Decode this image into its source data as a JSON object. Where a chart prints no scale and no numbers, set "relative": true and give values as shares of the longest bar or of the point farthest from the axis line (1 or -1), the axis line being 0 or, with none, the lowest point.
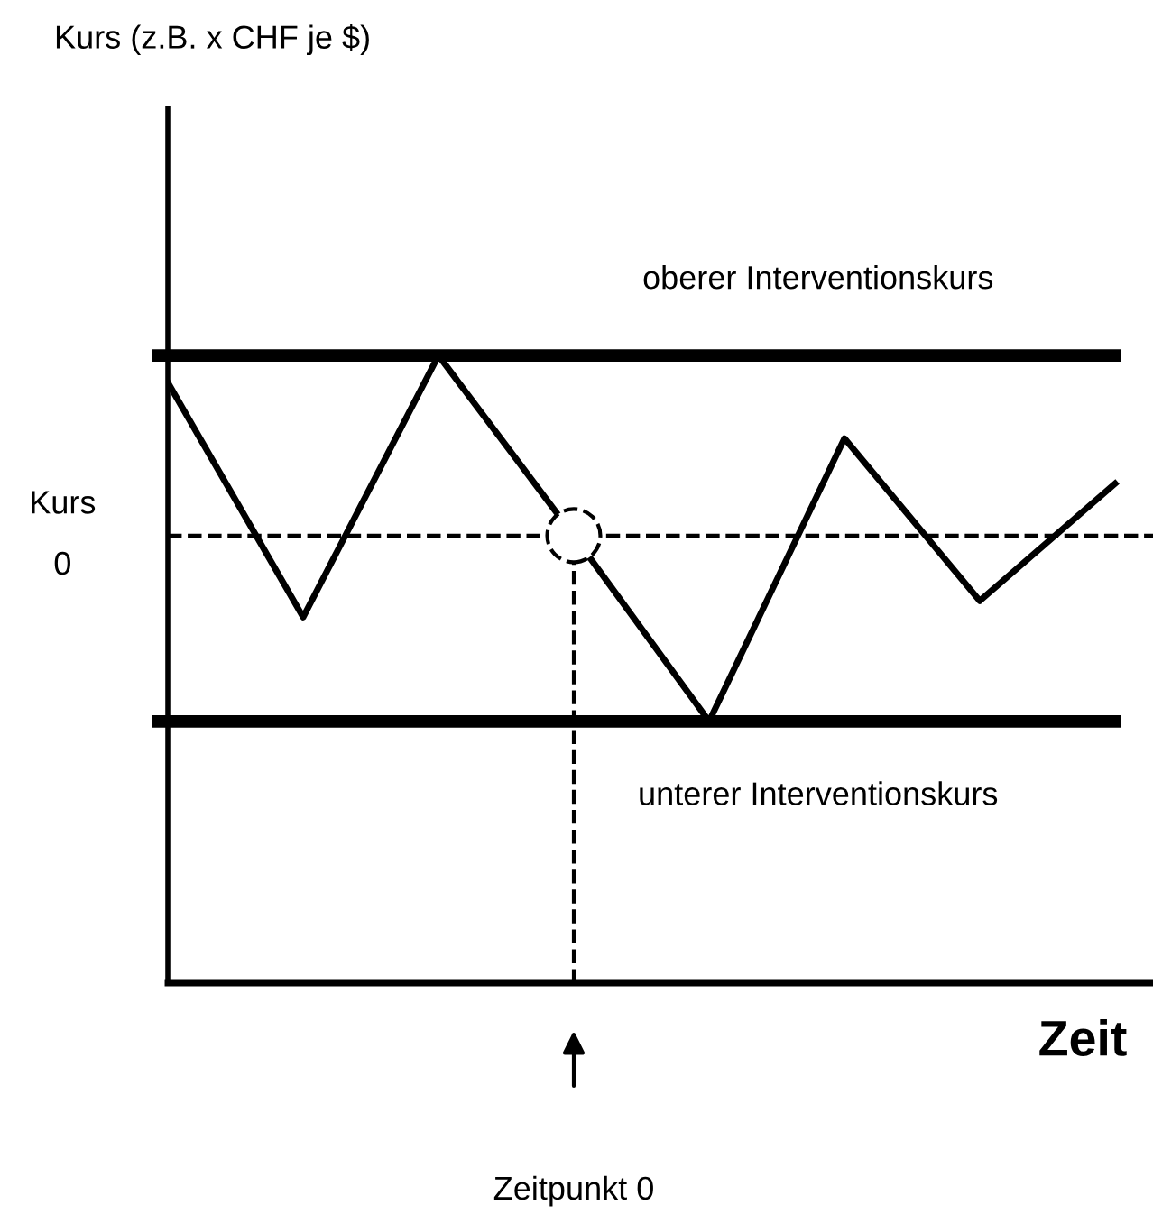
{
  "chart_data": {
    "type": "line",
    "relative": true,
    "xlabel": "Zeit",
    "annotations": [
      "Kurs (z.B. x CHF je $)",
      "Zeitpunkt 0"
    ],
    "categories": [
      null,
      null,
      null,
      null,
      null,
      null,
      null,
      null
    ],
    "series": [
      {
        "color": "#000000",
        "values": [
          0.957,
          0.583,
          1.0,
          0.713,
          0.417,
          0.868,
          0.609,
          0.796
        ]
      }
    ],
    "ref_lines": [
      {
        "axis": "y",
        "value": 1.0,
        "label": "oberer Interventionskurs",
        "line_style": "solid",
        "color": "#000000"
      },
      {
        "axis": "y",
        "value": 0.417,
        "label": "unterer Interventionskurs",
        "line_style": "solid",
        "color": "#000000"
      },
      {
        "axis": "y",
        "value": 0.713,
        "label": "Kurs\n0",
        "line_style": "dashed",
        "color": "#000000"
      }
    ]
  }
}
